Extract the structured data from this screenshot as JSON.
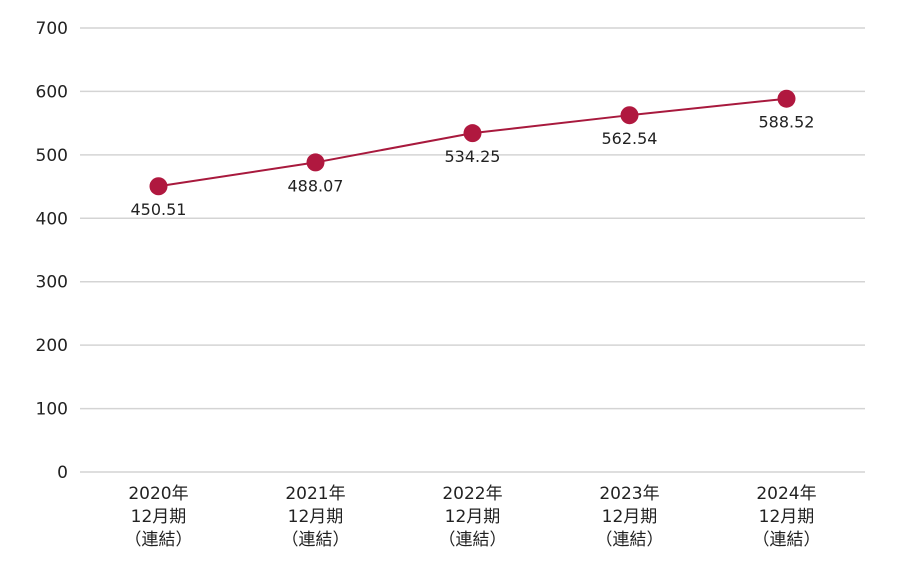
{
  "chart_data": {
    "type": "line",
    "categories": [
      [
        "2020年",
        "12月期",
        "（連結）"
      ],
      [
        "2021年",
        "12月期",
        "（連結）"
      ],
      [
        "2022年",
        "12月期",
        "（連結）"
      ],
      [
        "2023年",
        "12月期",
        "（連結）"
      ],
      [
        "2024年",
        "12月期",
        "（連結）"
      ]
    ],
    "series": [
      {
        "values": [
          450.51,
          488.07,
          534.25,
          562.54,
          588.52
        ],
        "data_labels": [
          "450.51",
          "488.07",
          "534.25",
          "562.54",
          "588.52"
        ]
      }
    ],
    "yticks": [
      0,
      100,
      200,
      300,
      400,
      500,
      600,
      700
    ],
    "ylim": [
      0,
      700
    ],
    "grid": true,
    "line_color": "#a8193d",
    "marker_color": "#b0183f",
    "grid_color": "#d4d4d4"
  }
}
